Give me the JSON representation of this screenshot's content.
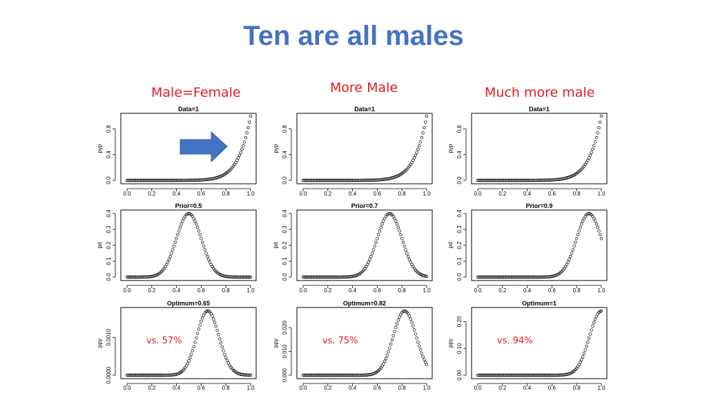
{
  "title": "Ten are all males",
  "column_labels": [
    "Male=Female",
    "More Male",
    "Much more male"
  ],
  "colors": {
    "title": "#4472c4",
    "labels": "#e31b23",
    "arrow": "#4472c4",
    "points": "#000000"
  },
  "arrow_icon": "right-arrow-icon",
  "chart_data": [
    {
      "type": "scatter",
      "title": "Data=1",
      "ylabel": "pyp",
      "xlim": [
        0,
        1
      ],
      "ylim": [
        0,
        1
      ],
      "yticks": [
        "0.0",
        "0.4",
        "0.8"
      ],
      "xticks": [
        "0.0",
        "0.2",
        "0.4",
        "0.6",
        "0.8",
        "1.0"
      ],
      "curve": "x^10 (likelihood of ten males)",
      "note": ""
    },
    {
      "type": "scatter",
      "title": "Data=1",
      "ylabel": "pyp",
      "xlim": [
        0,
        1
      ],
      "ylim": [
        0,
        1
      ],
      "yticks": [
        "0.0",
        "0.4",
        "0.8"
      ],
      "xticks": [
        "0.0",
        "0.2",
        "0.4",
        "0.6",
        "0.8",
        "1.0"
      ],
      "curve": "x^10",
      "note": ""
    },
    {
      "type": "scatter",
      "title": "Data=1",
      "ylabel": "pyp",
      "xlim": [
        0,
        1
      ],
      "ylim": [
        0,
        1
      ],
      "yticks": [
        "0.0",
        "0.4",
        "0.8"
      ],
      "xticks": [
        "0.0",
        "0.2",
        "0.4",
        "0.6",
        "0.8",
        "1.0"
      ],
      "curve": "x^10",
      "note": ""
    },
    {
      "type": "scatter",
      "title": "Prior=0.5",
      "ylabel": "pd",
      "xlim": [
        0,
        1
      ],
      "ylim": [
        0,
        0.4
      ],
      "yticks": [
        "0.0",
        "0.1",
        "0.2",
        "0.3",
        "0.4"
      ],
      "xticks": [
        "0.0",
        "0.2",
        "0.4",
        "0.6",
        "0.8",
        "1.0"
      ],
      "curve": "normal density, mean 0.5, peak 0.4",
      "mean": 0.5,
      "note": ""
    },
    {
      "type": "scatter",
      "title": "Prior=0.7",
      "ylabel": "pd",
      "xlim": [
        0,
        1
      ],
      "ylim": [
        0,
        0.4
      ],
      "yticks": [
        "0.0",
        "0.1",
        "0.2",
        "0.3",
        "0.4"
      ],
      "xticks": [
        "0.0",
        "0.2",
        "0.4",
        "0.6",
        "0.8",
        "1.0"
      ],
      "curve": "normal density, mean 0.7, peak 0.4",
      "mean": 0.7,
      "note": ""
    },
    {
      "type": "scatter",
      "title": "Prior=0.9",
      "ylabel": "pd",
      "xlim": [
        0,
        1
      ],
      "ylim": [
        0,
        0.4
      ],
      "yticks": [
        "0.0",
        "0.1",
        "0.2",
        "0.3",
        "0.4"
      ],
      "xticks": [
        "0.0",
        "0.2",
        "0.4",
        "0.6",
        "0.8",
        "1.0"
      ],
      "curve": "normal density, mean 0.9, peak 0.4",
      "mean": 0.9,
      "note": ""
    },
    {
      "type": "scatter",
      "title": "Optimum=0.65",
      "ylabel": "ppy",
      "xlim": [
        0,
        1
      ],
      "ylim": [
        0,
        0.0017
      ],
      "yticks": [
        "0.0000",
        "0.0010"
      ],
      "xticks": [
        "0.0",
        "0.2",
        "0.4",
        "0.6",
        "0.8",
        "1.0"
      ],
      "curve": "posterior, peak 0.0017 at 0.65",
      "peak_x": 0.65,
      "peak_y": 0.0017,
      "note": "vs. 57%"
    },
    {
      "type": "scatter",
      "title": "Optimum=0.82",
      "ylabel": "ppy",
      "xlim": [
        0,
        1
      ],
      "ylim": [
        0,
        0.027
      ],
      "yticks": [
        "0.000",
        "0.010",
        "0.020"
      ],
      "xticks": [
        "0.0",
        "0.2",
        "0.4",
        "0.6",
        "0.8",
        "1.0"
      ],
      "curve": "posterior, peak 0.027 at 0.82",
      "peak_x": 0.82,
      "peak_y": 0.027,
      "note": "vs. 75%"
    },
    {
      "type": "scatter",
      "title": "Optimum=1",
      "ylabel": "ppy",
      "xlim": [
        0,
        1
      ],
      "ylim": [
        0,
        0.24
      ],
      "yticks": [
        "0.00",
        "0.10",
        "0.20"
      ],
      "xticks": [
        "0.0",
        "0.2",
        "0.4",
        "0.6",
        "0.8",
        "1.0"
      ],
      "curve": "posterior, peak 0.24 at 1.0",
      "peak_x": 1.0,
      "peak_y": 0.24,
      "note": "vs. 94%"
    }
  ]
}
